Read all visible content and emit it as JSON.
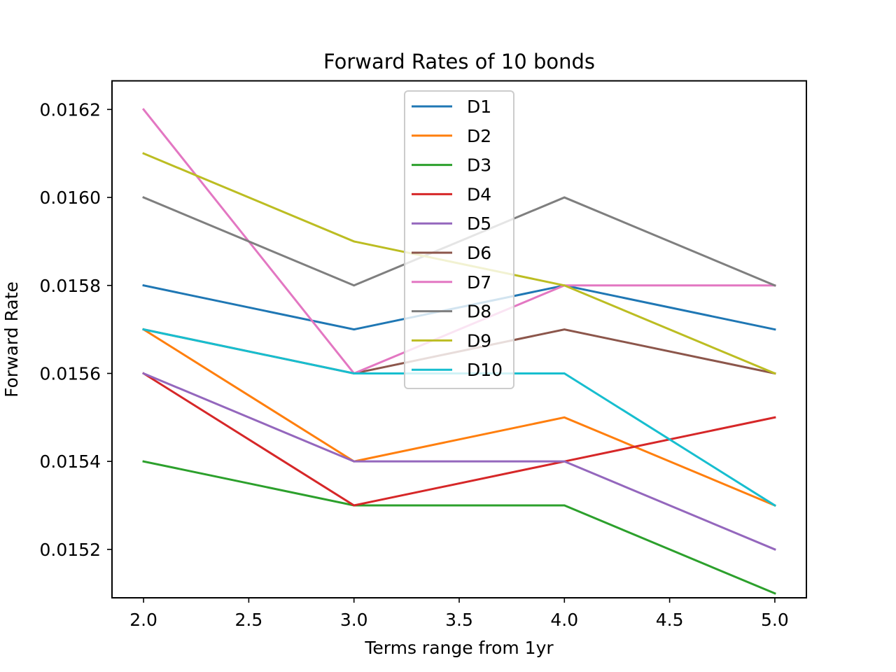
{
  "chart_data": {
    "type": "line",
    "title": "Forward Rates of 10 bonds",
    "xlabel": "Terms range from 1yr",
    "ylabel": "Forward Rate",
    "x": [
      2.0,
      3.0,
      4.0,
      5.0
    ],
    "xlim": [
      1.85,
      5.15
    ],
    "ylim": [
      0.01509,
      0.016265
    ],
    "x_ticks": [
      "2.0",
      "2.5",
      "3.0",
      "3.5",
      "4.0",
      "4.5",
      "5.0"
    ],
    "y_ticks": [
      "0.0152",
      "0.0154",
      "0.0156",
      "0.0158",
      "0.0160",
      "0.0162"
    ],
    "grid": false,
    "legend_position": "top-center",
    "series": [
      {
        "name": "D1",
        "color": "#1f77b4",
        "values": [
          0.0158,
          0.0157,
          0.0158,
          0.0157
        ]
      },
      {
        "name": "D2",
        "color": "#ff7f0e",
        "values": [
          0.0157,
          0.0154,
          0.0155,
          0.0153
        ]
      },
      {
        "name": "D3",
        "color": "#2ca02c",
        "values": [
          0.0154,
          0.0153,
          0.0153,
          0.0151
        ]
      },
      {
        "name": "D4",
        "color": "#d62728",
        "values": [
          0.0156,
          0.0153,
          0.0154,
          0.0155
        ]
      },
      {
        "name": "D5",
        "color": "#9467bd",
        "values": [
          0.0156,
          0.0154,
          0.0154,
          0.0152
        ]
      },
      {
        "name": "D6",
        "color": "#8c564b",
        "values": [
          0.0157,
          0.0156,
          0.0157,
          0.0156
        ]
      },
      {
        "name": "D7",
        "color": "#e377c2",
        "values": [
          0.0162,
          0.0156,
          0.0158,
          0.0158
        ]
      },
      {
        "name": "D8",
        "color": "#7f7f7f",
        "values": [
          0.016,
          0.0158,
          0.016,
          0.0158
        ]
      },
      {
        "name": "D9",
        "color": "#bcbd22",
        "values": [
          0.0161,
          0.0159,
          0.0158,
          0.0156
        ]
      },
      {
        "name": "D10",
        "color": "#17becf",
        "values": [
          0.0157,
          0.0156,
          0.0156,
          0.0153
        ]
      }
    ]
  }
}
